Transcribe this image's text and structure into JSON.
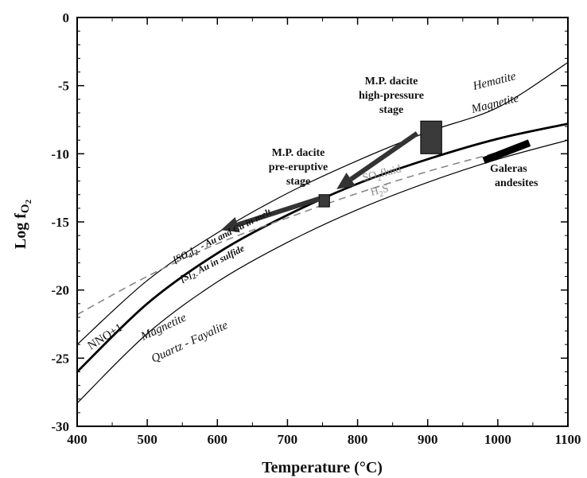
{
  "chart_data": {
    "type": "line",
    "xlabel": "Temperature (°C)",
    "ylabel_main": "Log f",
    "ylabel_sub": "O",
    "ylabel_sub2": "2",
    "xlim": [
      400,
      1100
    ],
    "ylim": [
      -30,
      0
    ],
    "x_ticks": [
      400,
      500,
      600,
      700,
      800,
      900,
      1000,
      1100
    ],
    "y_ticks": [
      0,
      -5,
      -10,
      -15,
      -20,
      -25,
      -30
    ],
    "grid": false,
    "buffers": [
      {
        "label": "Hematite/Magnetite",
        "style": "thin",
        "points": [
          [
            400,
            -24.0
          ],
          [
            500,
            -19.3
          ],
          [
            600,
            -15.8
          ],
          [
            700,
            -12.9
          ],
          [
            800,
            -10.5
          ],
          [
            900,
            -8.4
          ],
          [
            1000,
            -6.6
          ],
          [
            1100,
            -3.3
          ]
        ]
      },
      {
        "label": "NNO+1",
        "style": "thick",
        "points": [
          [
            400,
            -26.0
          ],
          [
            500,
            -21.0
          ],
          [
            600,
            -17.3
          ],
          [
            700,
            -14.5
          ],
          [
            800,
            -12.2
          ],
          [
            900,
            -10.4
          ],
          [
            1000,
            -8.9
          ],
          [
            1100,
            -7.8
          ]
        ]
      },
      {
        "label": "Magnetite / Quartz - Fayalite",
        "style": "thin",
        "points": [
          [
            400,
            -28.3
          ],
          [
            500,
            -23.2
          ],
          [
            600,
            -19.4
          ],
          [
            700,
            -16.5
          ],
          [
            800,
            -14.1
          ],
          [
            900,
            -12.1
          ],
          [
            1000,
            -10.4
          ],
          [
            1100,
            -9.0
          ]
        ]
      },
      {
        "label": "SO2fluid/H2S",
        "style": "dashed",
        "points": [
          [
            400,
            -21.8
          ],
          [
            500,
            -19.0
          ],
          [
            600,
            -16.6
          ],
          [
            700,
            -14.7
          ],
          [
            800,
            -12.9
          ],
          [
            900,
            -11.3
          ],
          [
            1000,
            -9.9
          ]
        ]
      }
    ],
    "regions": [
      {
        "label": "M.P. dacite high-pressure stage",
        "x": [
          890,
          920
        ],
        "y": [
          -10.0,
          -7.6
        ],
        "kind": "box"
      },
      {
        "label": "M.P. dacite pre-eruptive stage",
        "x": [
          745,
          760
        ],
        "y": [
          -13.9,
          -13.0
        ],
        "kind": "box"
      },
      {
        "label": "Galeras andesites",
        "x": [
          980,
          1045
        ],
        "y": [
          -10.5,
          -9.2
        ],
        "kind": "bar"
      }
    ],
    "arrows": [
      {
        "from": [
          885,
          -8.5
        ],
        "to": [
          770,
          -12.6
        ]
      },
      {
        "from": [
          745,
          -13.3
        ],
        "to": [
          605,
          -15.6
        ]
      }
    ],
    "annotations": {
      "hematite": "Hematite",
      "magnetite_upper": "Magnetite",
      "mp_high_1": "M.P. dacite",
      "mp_high_2": "high-pressure",
      "mp_high_3": "stage",
      "mp_pre_1": "M.P. dacite",
      "mp_pre_2": "pre-eruptive",
      "mp_pre_3": "stage",
      "so2": "SO",
      "so2_sub": "2",
      "so2_tail": "fluid",
      "h2s": "H",
      "h2s_sub": "2",
      "h2s_tail": "S",
      "galeras_1": "Galeras",
      "galeras_2": "andesites",
      "so4": "[SO",
      "so4_sub": "4",
      "so4_tail": "]",
      "so4_sub2": "2-",
      "so4_rest": " - Au and Cu in melt",
      "s2": "[S]",
      "s2_sub": "2-",
      "s2_rest": " Au in sulfide",
      "nno": "NNO+1",
      "magnetite_lower": "Magnetite",
      "qfm": "Quartz - Fayalite"
    }
  }
}
